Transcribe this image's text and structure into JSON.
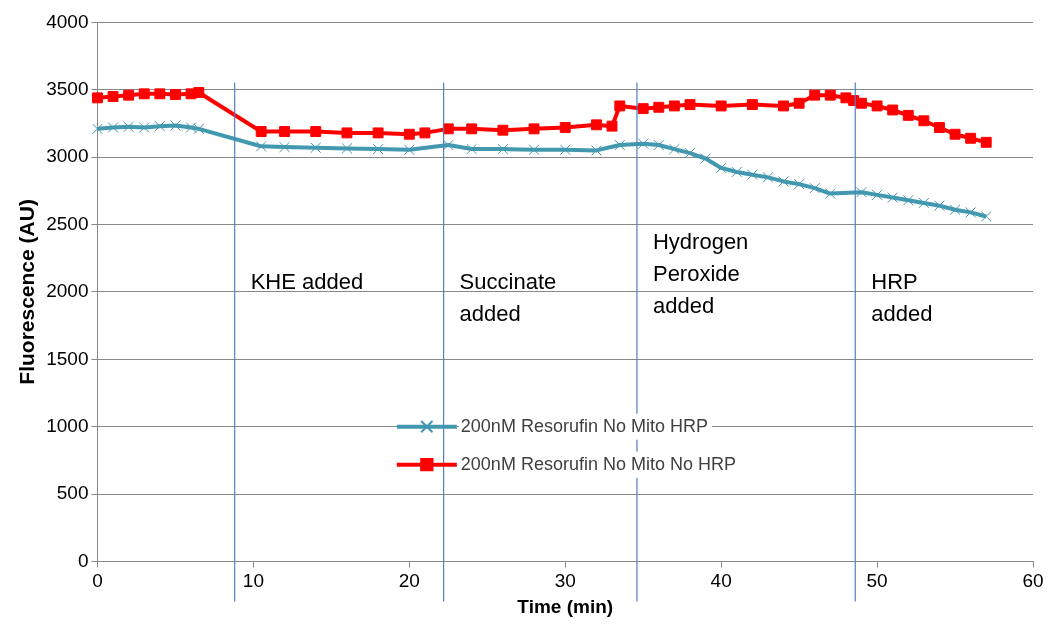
{
  "chart_data": {
    "type": "line",
    "xlabel": "Time (min)",
    "ylabel": "Fluorescence (AU)",
    "xlim": [
      0,
      60
    ],
    "xticks": [
      0,
      10,
      20,
      30,
      40,
      50,
      60
    ],
    "ylim": [
      0,
      4000
    ],
    "yticks": [
      0,
      500,
      1000,
      1500,
      2000,
      2500,
      3000,
      3500,
      4000
    ],
    "grid": "y",
    "legend": "center",
    "series": [
      {
        "name": "200nM Resorufin No Mito HRP",
        "color": "#4198af",
        "marker": "cross",
        "x": [
          0,
          1,
          2,
          3,
          4,
          5,
          6,
          6.5,
          10.5,
          12,
          14,
          16,
          18,
          20,
          22.5,
          24,
          26,
          28,
          30,
          32,
          33.5,
          35,
          36,
          37,
          38,
          39,
          40,
          41,
          42,
          43,
          44,
          45,
          46,
          47,
          49,
          50,
          51,
          52,
          53,
          54,
          55,
          56,
          57
        ],
        "values": [
          3210,
          3220,
          3225,
          3220,
          3230,
          3235,
          3220,
          3210,
          3080,
          3075,
          3070,
          3065,
          3060,
          3055,
          3090,
          3060,
          3060,
          3055,
          3055,
          3050,
          3090,
          3100,
          3090,
          3060,
          3030,
          2990,
          2920,
          2890,
          2870,
          2850,
          2820,
          2800,
          2770,
          2730,
          2740,
          2720,
          2700,
          2680,
          2660,
          2640,
          2610,
          2590,
          2560
        ]
      },
      {
        "name": "200nM Resorufin No Mito No HRP",
        "color": "#ff0000",
        "marker": "square",
        "x": [
          0,
          1,
          2,
          3,
          4,
          5,
          6,
          6.5,
          10.5,
          12,
          14,
          16,
          18,
          20,
          21,
          22.5,
          24,
          26,
          28,
          30,
          32,
          33,
          33.5,
          35,
          36,
          37,
          38,
          40,
          42,
          44,
          45,
          46,
          47,
          48,
          48.5,
          49,
          50,
          51,
          52,
          53,
          54,
          55,
          56,
          57
        ],
        "values": [
          3440,
          3450,
          3460,
          3470,
          3470,
          3465,
          3470,
          3480,
          3190,
          3190,
          3190,
          3180,
          3180,
          3170,
          3180,
          3210,
          3210,
          3200,
          3210,
          3220,
          3240,
          3230,
          3380,
          3360,
          3370,
          3380,
          3390,
          3380,
          3390,
          3380,
          3400,
          3460,
          3460,
          3440,
          3420,
          3400,
          3380,
          3350,
          3310,
          3270,
          3220,
          3170,
          3140,
          3110
        ]
      }
    ],
    "ref_lines": [
      {
        "axis": "x",
        "value": 8.8,
        "label": "KHE added",
        "color": "#4f81bd"
      },
      {
        "axis": "x",
        "value": 22.2,
        "label": "Succinate\nadded",
        "color": "#4f81bd"
      },
      {
        "axis": "x",
        "value": 34.6,
        "label": "Hydrogen\nPeroxide\nadded",
        "color": "#4f81bd"
      },
      {
        "axis": "x",
        "value": 48.6,
        "label": "HRP\nadded",
        "color": "#4f81bd"
      }
    ]
  }
}
